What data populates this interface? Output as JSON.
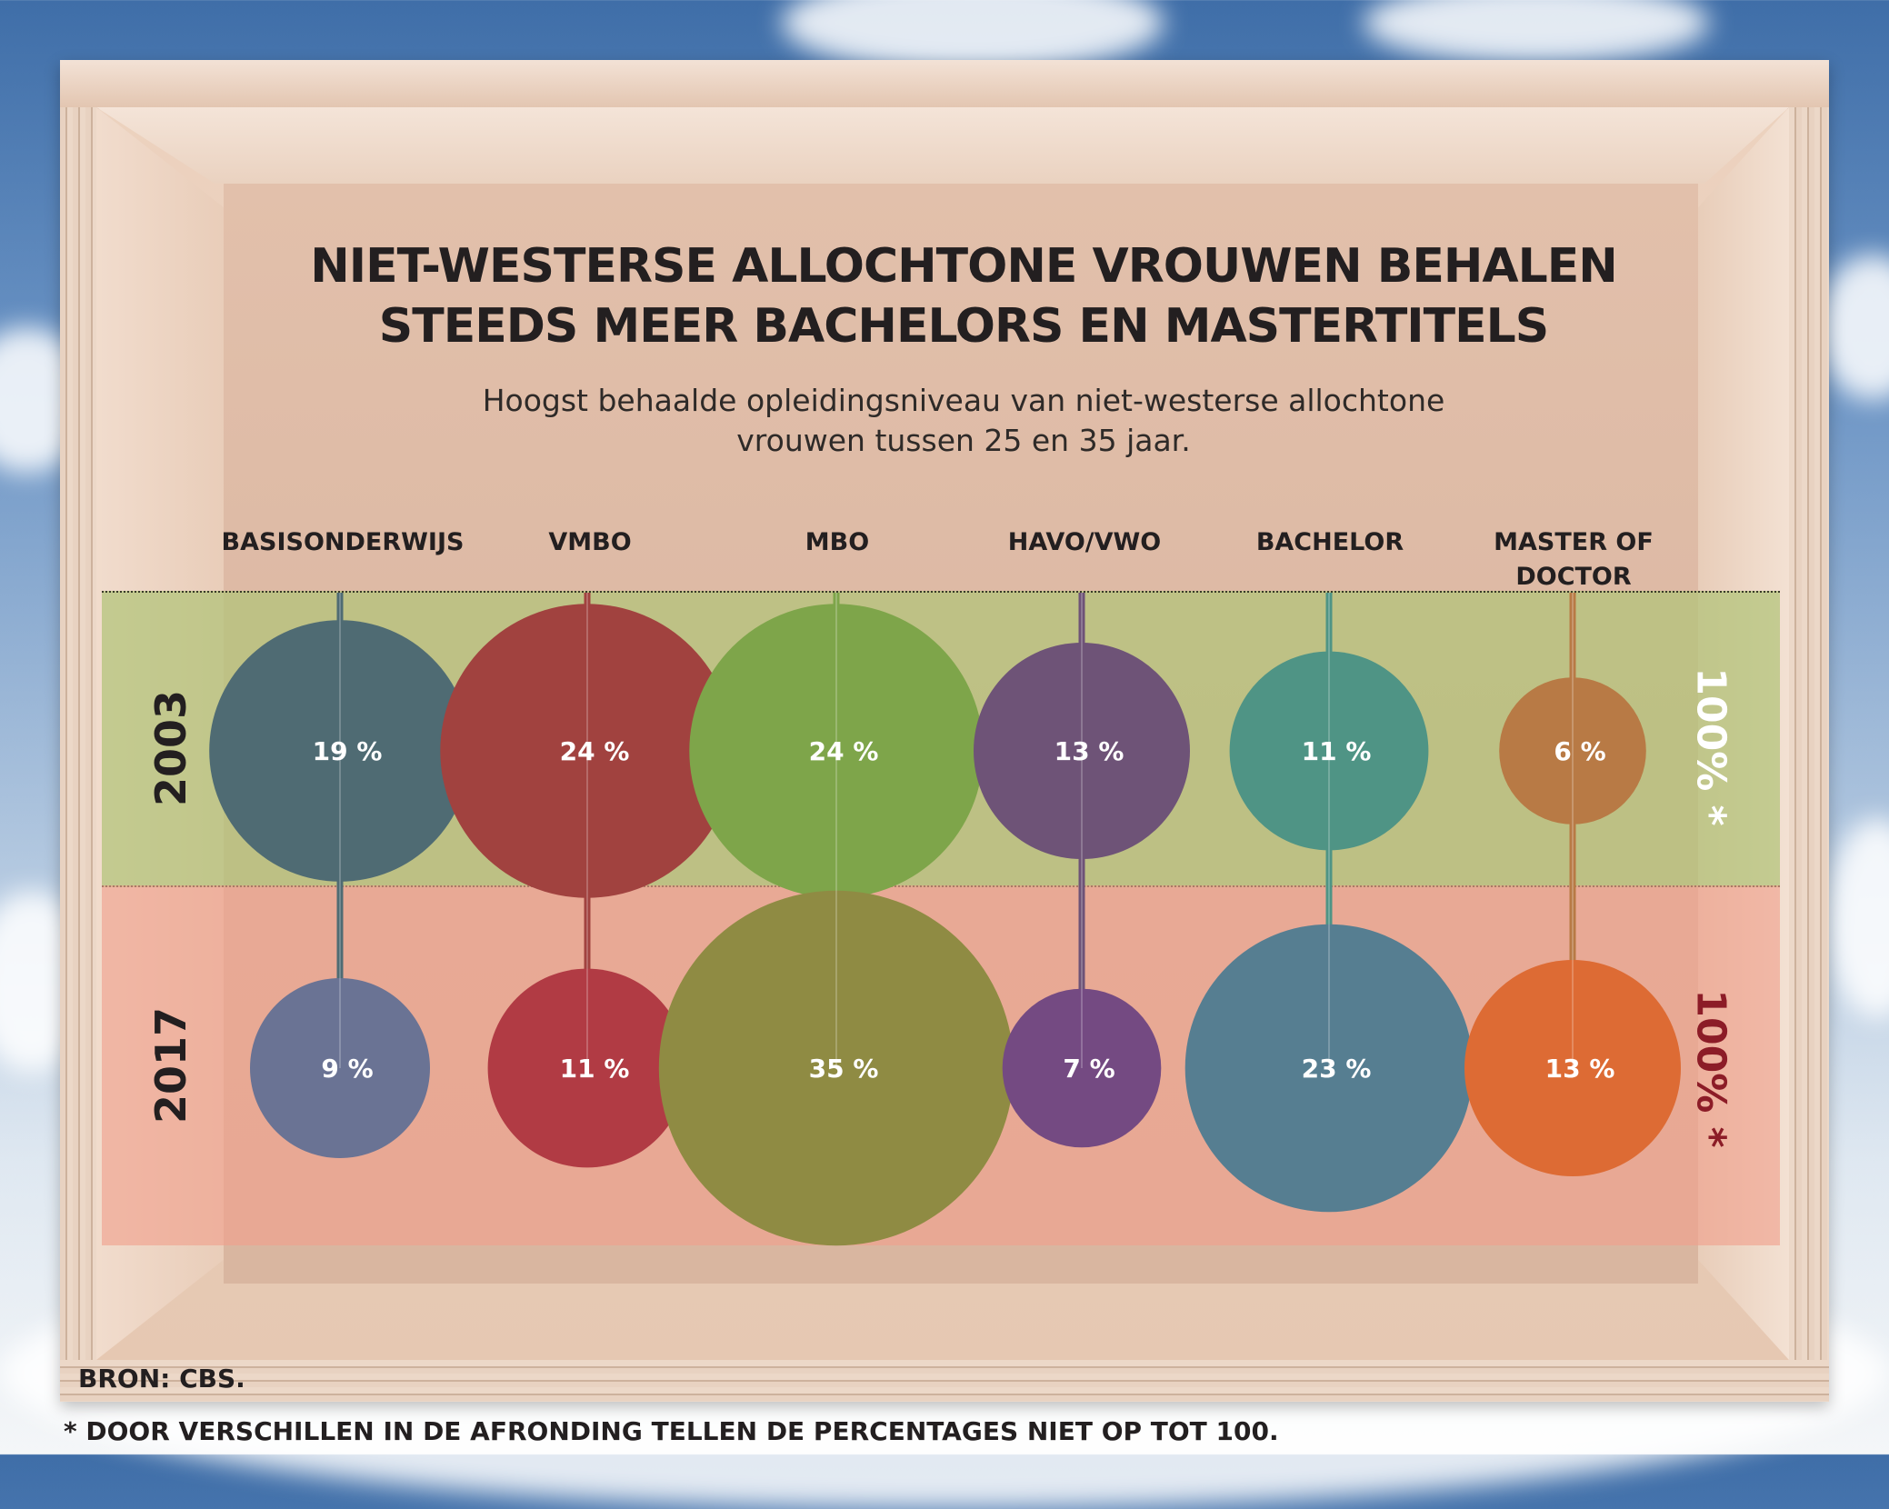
{
  "chart_data": {
    "type": "scatter",
    "title": "NIET-WESTERSE ALLOCHTONE VROUWEN BEHALEN STEEDS MEER BACHELORS EN MASTERTITELS",
    "title_lines": [
      "NIET-WESTERSE ALLOCHTONE VROUWEN BEHALEN",
      "STEEDS MEER BACHELORS EN MASTERTITELS"
    ],
    "subtitle_lines": [
      "Hoogst behaalde opleidingsniveau van niet-westerse allochtone",
      "vrouwen tussen 25 en 35 jaar."
    ],
    "categories": [
      {
        "name": "BASISONDERWIJS",
        "lines": [
          "BASISONDERWIJS"
        ]
      },
      {
        "name": "VMBO",
        "lines": [
          "VMBO"
        ]
      },
      {
        "name": "MBO",
        "lines": [
          "MBO"
        ]
      },
      {
        "name": "HAVO/VWO",
        "lines": [
          "HAVO/VWO"
        ]
      },
      {
        "name": "BACHELOR",
        "lines": [
          "BACHELOR"
        ]
      },
      {
        "name": "MASTER OF DOCTOR",
        "lines": [
          "MASTER OF",
          "DOCTOR"
        ]
      }
    ],
    "series": [
      {
        "name": "2003",
        "values": [
          19,
          24,
          24,
          13,
          11,
          6
        ],
        "labels": [
          "19 %",
          "24 %",
          "24 %",
          "13 %",
          "11 %",
          "6 %"
        ],
        "colors": [
          "#4f6b73",
          "#a1423f",
          "#7ea54a",
          "#6e5377",
          "#4f9485",
          "#b87a45"
        ],
        "total_label": "100% *",
        "total_color": "#ffffff"
      },
      {
        "name": "2017",
        "values": [
          9,
          11,
          35,
          7,
          23,
          13
        ],
        "labels": [
          "9 %",
          "11 %",
          "35 %",
          "7 %",
          "23 %",
          "13 %"
        ],
        "colors": [
          "#6a7394",
          "#b13b44",
          "#8f8b43",
          "#744a82",
          "#567e91",
          "#dd6b34"
        ],
        "total_label": "100% *",
        "total_color": "#8c1c27"
      }
    ],
    "unit": "%",
    "source": "BRON: CBS.",
    "footnote": "* DOOR VERSCHILLEN IN DE AFRONDING TELLEN DE PERCENTAGES NIET OP TOT 100.",
    "colors": {
      "band_2003": "#b2c378",
      "band_2017": "#f0a08c",
      "sky": "#4a78b0",
      "wood": "#e6c8b2"
    }
  }
}
